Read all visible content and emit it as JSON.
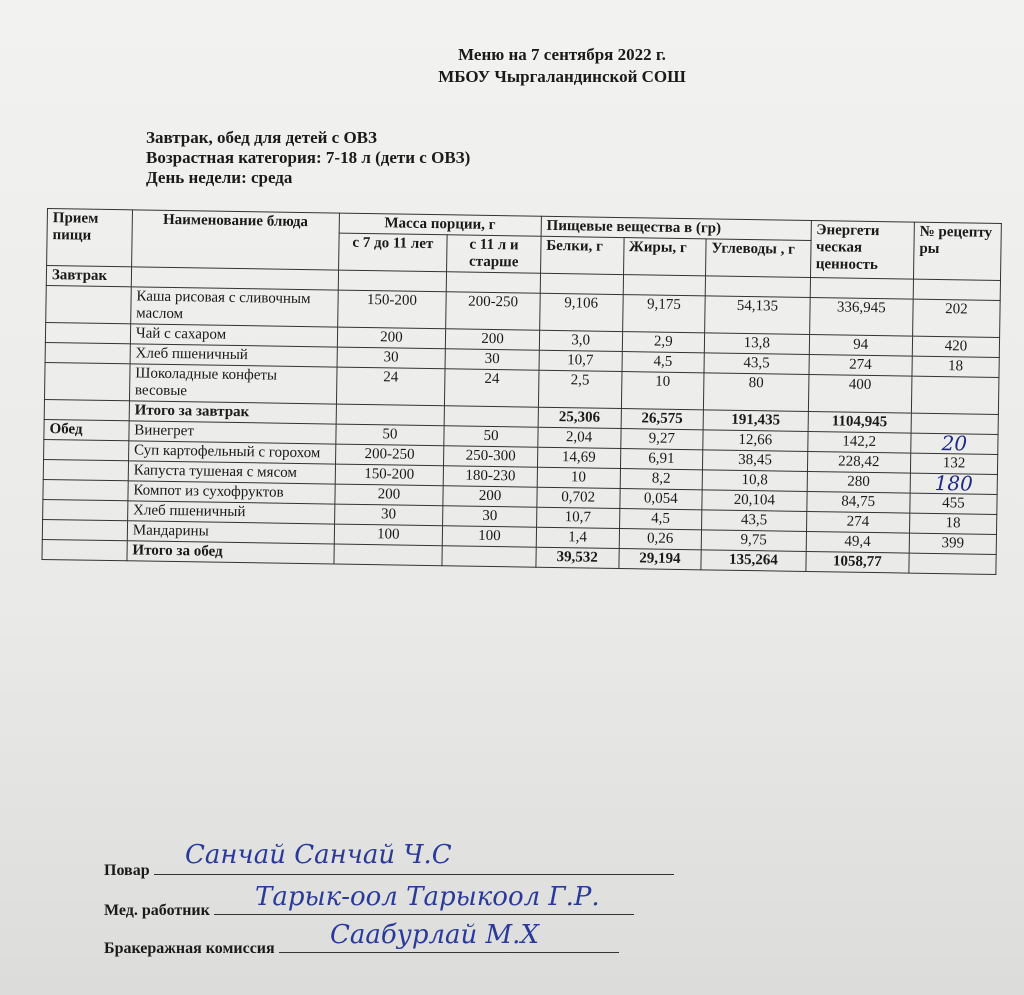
{
  "header": {
    "line1": "Меню  на 7 сентября 2022 г.",
    "line2": "МБОУ Чыргаландинской СОШ"
  },
  "info": [
    "Завтрак, обед для детей с ОВЗ",
    "Возрастная категория: 7-18 л (дети с ОВЗ)",
    "День недели: среда"
  ],
  "table": {
    "headers": {
      "meal": "Прием пищи",
      "dish": "Наименование блюда",
      "mass": "Масса порции, г",
      "mass_a": "с 7 до 11 лет",
      "mass_b": "с 11 л и старше",
      "nutr": "Пищевые вещества в (гр)",
      "prot": "Белки, г",
      "fat": "Жиры, г",
      "carb": "Углеводы , г",
      "energy": "Энергети ческая ценность",
      "recipe": "№ рецепту ры"
    },
    "breakfast_label": "Завтрак",
    "breakfast": [
      [
        "Каша рисовая с сливочным маслом",
        "150-200",
        "200-250",
        "9,106",
        "9,175",
        "54,135",
        "336,945",
        "202"
      ],
      [
        "Чай с сахаром",
        "200",
        "200",
        "3,0",
        "2,9",
        "13,8",
        "94",
        "420"
      ],
      [
        "Хлеб пшеничный",
        "30",
        "30",
        "10,7",
        "4,5",
        "43,5",
        "274",
        "18"
      ],
      [
        "Шоколадные конфеты весовые",
        "24",
        "24",
        "2,5",
        "10",
        "80",
        "400",
        ""
      ]
    ],
    "breakfast_total": [
      "Итого за завтрак",
      "25,306",
      "26,575",
      "191,435",
      "1104,945"
    ],
    "lunch_label": "Обед",
    "lunch": [
      [
        "Винегрет",
        "50",
        "50",
        "2,04",
        "9,27",
        "12,66",
        "142,2",
        "20"
      ],
      [
        "Суп картофельный с горохом",
        "200-250",
        "250-300",
        "14,69",
        "6,91",
        "38,45",
        "228,42",
        "132"
      ],
      [
        "Капуста тушеная с мясом",
        "150-200",
        "180-230",
        "10",
        "8,2",
        "10,8",
        "280",
        "180"
      ],
      [
        "Компот из сухофруктов",
        "200",
        "200",
        "0,702",
        "0,054",
        "20,104",
        "84,75",
        "455"
      ],
      [
        "Хлеб пшеничный",
        "30",
        "30",
        "10,7",
        "4,5",
        "43,5",
        "274",
        "18"
      ],
      [
        "Мандарины",
        "100",
        "100",
        "1,4",
        "0,26",
        "9,75",
        "49,4",
        "399"
      ]
    ],
    "lunch_total": [
      "Итого за обед",
      "39,532",
      "29,194",
      "135,264",
      "1058,77"
    ]
  },
  "signatures": {
    "cook_label": "Повар",
    "cook_sign": "Санчай    Санчай Ч.С",
    "med_label": "Мед. работник",
    "med_sign": "Тарык-оол Тарыкоол Г.Р.",
    "comm_label": "Бракеражная комиссия",
    "comm_sign": "Саабурлай М.Х"
  }
}
